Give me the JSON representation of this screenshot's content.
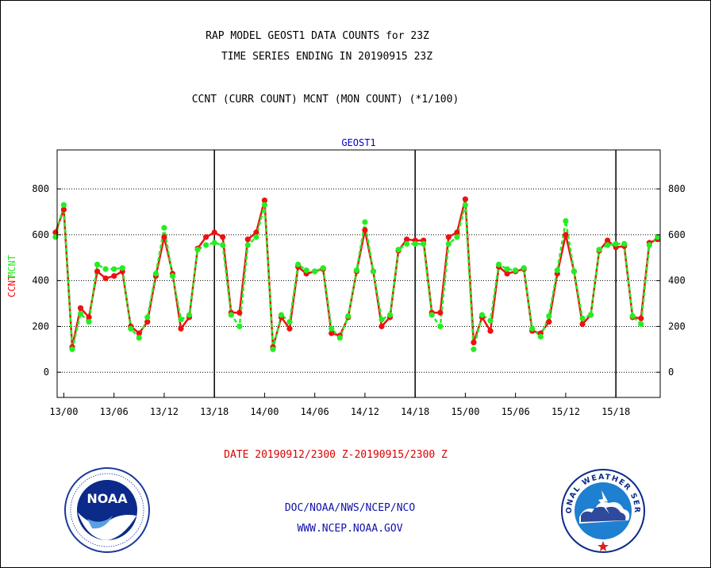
{
  "header": {
    "title_line1": "RAP MODEL GEOST1 DATA COUNTS for 23Z",
    "title_line2": "TIME SERIES ENDING IN 20190915 23Z",
    "subtitle": "CCNT (CURR COUNT) MCNT (MON COUNT) (*1/100)"
  },
  "footer": {
    "date_range": "DATE 20190912/2300 Z-20190915/2300 Z",
    "org": "DOC/NOAA/NWS/NCEP/NCO",
    "url": "WWW.NCEP.NOAA.GOV",
    "noaa_logo_text": "NOAA",
    "nws_logo_text": "NATIONAL WEATHER SERVICE"
  },
  "colors": {
    "ccnt": "#ee1111",
    "mcnt": "#22ee22",
    "title": "#000000",
    "plot_label": "#0000cc",
    "date_text": "#dd0000",
    "footer_text": "#1111aa"
  },
  "chart_data": {
    "type": "line",
    "title": "GEOST1",
    "ylabel": "CCNT  MCNT",
    "ylim": [
      -110,
      970
    ],
    "yticks": [
      0,
      200,
      400,
      600,
      800
    ],
    "xlim": [
      -0.8,
      71.3
    ],
    "xticks": [
      {
        "x": 0,
        "label": "13/00"
      },
      {
        "x": 6,
        "label": "13/06"
      },
      {
        "x": 12,
        "label": "13/12"
      },
      {
        "x": 18,
        "label": "13/18"
      },
      {
        "x": 24,
        "label": "14/00"
      },
      {
        "x": 30,
        "label": "14/06"
      },
      {
        "x": 36,
        "label": "14/12"
      },
      {
        "x": 42,
        "label": "14/18"
      },
      {
        "x": 48,
        "label": "15/00"
      },
      {
        "x": 54,
        "label": "15/06"
      },
      {
        "x": 60,
        "label": "15/12"
      },
      {
        "x": 66,
        "label": "15/18"
      }
    ],
    "day_boundaries": [
      18,
      42,
      66
    ],
    "grid": "horizontal dotted",
    "series": [
      {
        "name": "CCNT",
        "x_start": -1,
        "values": [
          610,
          710,
          110,
          280,
          240,
          440,
          410,
          420,
          440,
          200,
          170,
          220,
          420,
          590,
          430,
          190,
          240,
          540,
          590,
          610,
          590,
          260,
          260,
          580,
          610,
          750,
          110,
          240,
          190,
          460,
          430,
          440,
          450,
          170,
          160,
          240,
          440,
          620,
          440,
          200,
          240,
          530,
          580,
          575,
          575,
          260,
          260,
          590,
          610,
          755,
          130,
          240,
          180,
          460,
          430,
          440,
          450,
          180,
          170,
          220,
          430,
          600,
          440,
          210,
          250,
          530,
          575,
          545,
          550,
          240,
          235,
          565,
          580
        ]
      },
      {
        "name": "MCNT",
        "x_start": -1,
        "values": [
          590,
          730,
          100,
          255,
          220,
          470,
          450,
          450,
          455,
          190,
          150,
          240,
          430,
          630,
          420,
          230,
          250,
          535,
          555,
          565,
          555,
          250,
          200,
          555,
          590,
          730,
          100,
          250,
          220,
          470,
          445,
          440,
          455,
          190,
          150,
          245,
          445,
          655,
          440,
          230,
          250,
          535,
          560,
          560,
          560,
          250,
          200,
          560,
          590,
          730,
          100,
          250,
          225,
          470,
          450,
          445,
          455,
          190,
          155,
          245,
          445,
          660,
          440,
          235,
          250,
          535,
          555,
          560,
          560,
          245,
          210,
          555,
          590
        ]
      }
    ]
  }
}
